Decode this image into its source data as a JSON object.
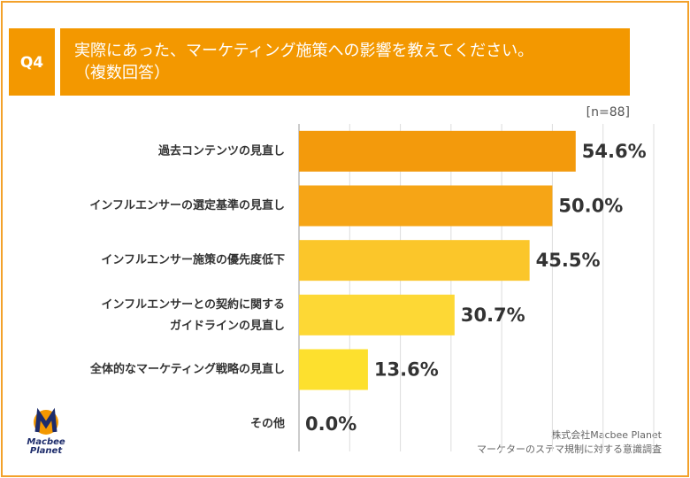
{
  "chart_data": {
    "type": "hbar",
    "question": "Q4",
    "title": "実際にあった、マーケティング施策への影響を教えてください。\n（複数回答）",
    "note": "[n=88]",
    "categories": [
      "過去コンテンツの見直し",
      "インフルエンサーの選定基準の見直し",
      "インフルエンサー施策の優先度低下",
      "インフルエンサーとの契約に関する\nガイドラインの見直し",
      "全体的なマーケティング戦略の見直し",
      "その他"
    ],
    "values": [
      54.6,
      50.0,
      45.5,
      30.7,
      13.6,
      0.0
    ],
    "value_labels": [
      "54.6%",
      "50.0%",
      "45.5%",
      "30.7%",
      "13.6%",
      "0.0%"
    ],
    "colors": [
      "#f39a0c",
      "#f6a516",
      "#fbc62a",
      "#fdd835",
      "#fde02e",
      "#fde02e"
    ],
    "xlim": [
      0,
      70
    ],
    "xticks": [
      0,
      10,
      20,
      30,
      40,
      50,
      60,
      70
    ],
    "grid": true,
    "logo": "Macbee\nPlanet",
    "source": "株式会社Macbee Planet\nマーケターのステマ規制に対する意識調査"
  }
}
